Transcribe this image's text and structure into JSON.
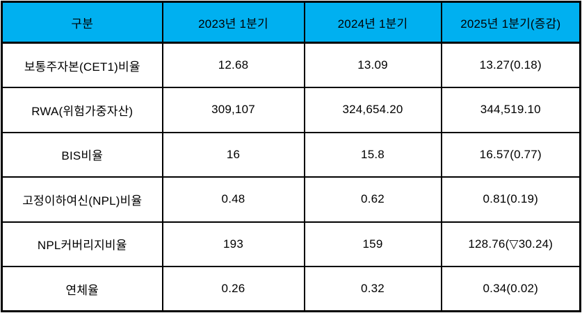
{
  "colors": {
    "header_bg": "#00B0F0",
    "border": "#000000",
    "text": "#000000",
    "row_bg": "#ffffff"
  },
  "chart_data": {
    "type": "table",
    "columns": [
      "구분",
      "2023년 1분기",
      "2024년 1분기",
      "2025년 1분기(증감)"
    ],
    "rows": [
      {
        "label": "보통주자본(CET1)비율",
        "values": [
          "12.68",
          "13.09",
          "13.27(0.18)"
        ]
      },
      {
        "label": "RWA(위험가중자산)",
        "values": [
          "309,107",
          "324,654.20",
          "344,519.10"
        ]
      },
      {
        "label": "BIS비율",
        "values": [
          "16",
          "15.8",
          "16.57(0.77)"
        ]
      },
      {
        "label": "고정이하여신(NPL)비율",
        "values": [
          "0.48",
          "0.62",
          "0.81(0.19)"
        ]
      },
      {
        "label": "NPL커버리지비율",
        "values": [
          "193",
          "159",
          "128.76(▽30.24)"
        ]
      },
      {
        "label": "연체율",
        "values": [
          "0.26",
          "0.32",
          "0.34(0.02)"
        ]
      }
    ]
  }
}
